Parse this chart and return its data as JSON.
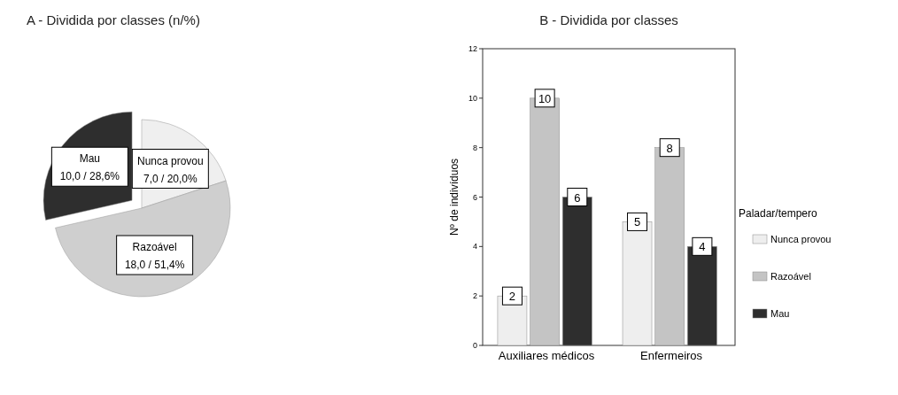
{
  "chart_data": [
    {
      "type": "pie",
      "title": "A - Dividida por classes (n/%)",
      "categories": [
        "Nunca provou",
        "Razoável",
        "Mau"
      ],
      "values": [
        7,
        18,
        10
      ],
      "colors": [
        "#efefef",
        "#cfcfcf",
        "#2e2e2e"
      ],
      "value_labels": [
        "7,0 / 20,0%",
        "18,0 / 51,4%",
        "10,0 / 28,6%"
      ]
    },
    {
      "type": "bar",
      "title": "B - Dividida por classes",
      "ylabel": "Nº de indivíduos",
      "categories": [
        "Auxiliares médicos",
        "Enfermeiros"
      ],
      "series": [
        {
          "name": "Nunca provou",
          "color": "#eeeeee",
          "values": [
            2,
            5
          ]
        },
        {
          "name": "Razoável",
          "color": "#c4c4c4",
          "values": [
            10,
            8
          ]
        },
        {
          "name": "Mau",
          "color": "#2e2e2e",
          "values": [
            6,
            4
          ]
        }
      ],
      "ylim": [
        0,
        12
      ],
      "yticks": [
        0,
        2,
        4,
        6,
        8,
        10,
        12
      ],
      "legend": "right",
      "legend_title": "Paladar/tempero",
      "data_labels": true
    }
  ]
}
